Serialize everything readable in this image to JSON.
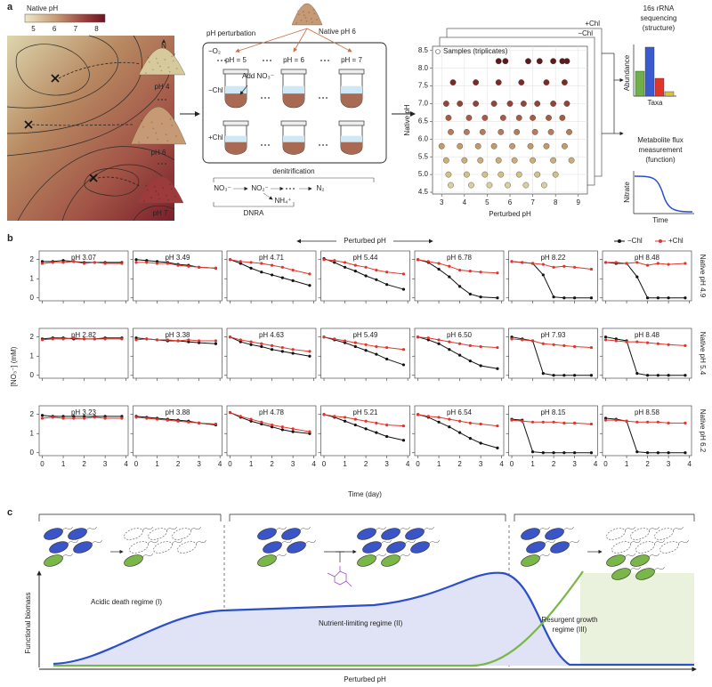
{
  "panel_labels": [
    "a",
    "b",
    "c"
  ],
  "panel_a": {
    "colorbar": {
      "label": "Native pH",
      "ticks": [
        5,
        6,
        7,
        8
      ]
    },
    "compass": "N",
    "soils": [
      "pH 4",
      "pH 6",
      "pH 7"
    ],
    "source": "Native pH 6",
    "perturbation": "pH perturbation",
    "anoxic": "−O₂",
    "levels": [
      "pH = 5",
      "pH = 6",
      "pH = 7"
    ],
    "add": "Add NO₃⁻",
    "rows": [
      "−Chl",
      "+Chl"
    ],
    "pathway": {
      "title": "denitrification",
      "species": [
        "NO₃⁻",
        "NO₂⁻",
        "N₂",
        "NH₄⁺"
      ],
      "alt": "DNRA"
    },
    "sequencing": [
      "16s rRNA",
      "sequencing",
      "(structure)"
    ],
    "abundance": "Abundance",
    "taxa": "Taxa",
    "flux": [
      "Metabolite flux",
      "measurement",
      "(function)"
    ],
    "nitrate": "Nitrate",
    "time": "Time"
  },
  "chart_data": [
    {
      "type": "scatter",
      "xlabel": "Perturbed pH",
      "ylabel": "Native pH",
      "xlim": [
        2.6,
        9.4
      ],
      "xticks": [
        3,
        4,
        5,
        6,
        7,
        8,
        9
      ],
      "ylim": [
        4.45,
        8.62
      ],
      "yticks": [
        4.5,
        {
          "value": 5,
          "label": "5.0"
        },
        5.5,
        {
          "value": 6,
          "label": "6.0"
        },
        6.5,
        {
          "value": 7,
          "label": "7.0"
        },
        7.5,
        {
          "value": 8,
          "label": "8.0"
        },
        8.5
      ],
      "grid": true,
      "legend": "Samples (triplicates)",
      "layers": [
        "+Chl",
        "−Chl"
      ],
      "series": [
        {
          "color": "#5a1a1e",
          "x": [
            5.5,
            5.8,
            6.8,
            7.3,
            7.9,
            8.3,
            8.5
          ],
          "values": [
            8.2,
            8.2,
            8.2,
            8.2,
            8.2,
            8.2,
            8.2
          ]
        },
        {
          "color": "#7a2a2a",
          "x": [
            3.5,
            4.5,
            5.5,
            6.5,
            7.6,
            8.4
          ],
          "values": [
            7.6,
            7.6,
            7.6,
            7.6,
            7.6,
            7.6
          ]
        },
        {
          "color": "#93443a",
          "x": [
            3.2,
            3.8,
            4.5,
            5.3,
            6.0,
            6.6,
            7.2,
            7.9,
            8.5
          ],
          "values": [
            7.0,
            7.0,
            7.0,
            7.0,
            7.0,
            7.0,
            7.0,
            7.0,
            7.0
          ]
        },
        {
          "color": "#a65a48",
          "x": [
            3.3,
            4.2,
            4.9,
            5.7,
            6.4,
            7.0,
            7.7,
            8.3
          ],
          "values": [
            6.6,
            6.6,
            6.6,
            6.6,
            6.6,
            6.6,
            6.6,
            6.6
          ]
        },
        {
          "color": "#b87a5c",
          "x": [
            3.4,
            4.1,
            4.8,
            5.6,
            6.3,
            7.1,
            7.8,
            8.6
          ],
          "values": [
            6.2,
            6.2,
            6.2,
            6.2,
            6.2,
            6.2,
            6.2,
            6.2
          ]
        },
        {
          "color": "#c29a6c",
          "x": [
            3.0,
            3.8,
            4.6,
            5.3,
            6.1,
            6.9,
            7.6,
            8.4
          ],
          "values": [
            5.8,
            5.8,
            5.8,
            5.8,
            5.8,
            5.8,
            5.8,
            5.8
          ]
        },
        {
          "color": "#c9b07a",
          "x": [
            3.2,
            4.0,
            4.7,
            5.5,
            6.2,
            7.0,
            7.9,
            8.7
          ],
          "values": [
            5.4,
            5.4,
            5.4,
            5.4,
            5.4,
            5.4,
            5.4,
            5.4
          ]
        },
        {
          "color": "#cfc28a",
          "x": [
            3.3,
            4.1,
            4.9,
            5.6,
            6.4,
            7.2,
            8.0
          ],
          "values": [
            5.0,
            5.0,
            5.0,
            5.0,
            5.0,
            5.0,
            5.0
          ]
        },
        {
          "color": "#d8d0a0",
          "x": [
            3.4,
            4.3,
            5.1,
            5.9,
            6.7,
            7.5
          ],
          "values": [
            4.7,
            4.7,
            4.7,
            4.7,
            4.7,
            4.7
          ]
        }
      ]
    },
    {
      "type": "line",
      "header": "Perturbed pH",
      "xlabel": "Time (day)",
      "ylabel": "[NO₃⁻] (mM)",
      "x": [
        0,
        0.5,
        1,
        1.5,
        2,
        2.5,
        3,
        3.8
      ],
      "xlim": [
        -0.15,
        4.1
      ],
      "xticks": [
        0,
        1,
        2,
        3,
        4
      ],
      "ylim": [
        -0.15,
        2.45
      ],
      "yticks": [
        0,
        1,
        2
      ],
      "legend": [
        {
          "name": "−Chl",
          "color": "#111111"
        },
        {
          "name": "+Chl",
          "color": "#e0352b"
        }
      ],
      "row_labels": [
        "Native pH 4.9",
        "Native pH 5.4",
        "Native pH 6.2"
      ],
      "panels": [
        {
          "title": "pH 3.07",
          "series": [
            {
              "values": [
                1.9,
                1.9,
                1.95,
                1.9,
                1.85,
                1.85,
                1.85,
                1.85
              ]
            },
            {
              "values": [
                1.8,
                1.85,
                1.85,
                1.9,
                1.8,
                1.85,
                1.8,
                1.8
              ]
            }
          ]
        },
        {
          "title": "pH 3.49",
          "series": [
            {
              "values": [
                2,
                1.95,
                1.9,
                1.85,
                1.75,
                1.7,
                1.6,
                1.55
              ]
            },
            {
              "values": [
                1.85,
                1.85,
                1.8,
                1.8,
                1.7,
                1.65,
                1.6,
                1.55
              ]
            }
          ]
        },
        {
          "title": "pH 4.71",
          "series": [
            {
              "values": [
                2,
                1.8,
                1.55,
                1.35,
                1.2,
                1.05,
                0.9,
                0.65
              ]
            },
            {
              "values": [
                2,
                1.9,
                1.85,
                1.8,
                1.7,
                1.6,
                1.45,
                1.25
              ]
            }
          ]
        },
        {
          "title": "pH 5.44",
          "series": [
            {
              "values": [
                2.05,
                1.85,
                1.6,
                1.4,
                1.15,
                0.95,
                0.7,
                0.45
              ]
            },
            {
              "values": [
                2,
                1.95,
                1.85,
                1.7,
                1.6,
                1.45,
                1.35,
                1.25
              ]
            }
          ]
        },
        {
          "title": "pH 6.78",
          "series": [
            {
              "values": [
                2,
                1.85,
                1.5,
                1.1,
                0.6,
                0.2,
                0.05,
                0
              ]
            },
            {
              "values": [
                2,
                1.9,
                1.8,
                1.65,
                1.45,
                1.4,
                1.35,
                1.3
              ]
            }
          ]
        },
        {
          "title": "pH 8.22",
          "series": [
            {
              "values": [
                1.9,
                1.85,
                1.8,
                1.2,
                0.05,
                0,
                0,
                0
              ]
            },
            {
              "values": [
                1.9,
                1.85,
                1.8,
                1.75,
                1.6,
                1.65,
                1.6,
                1.5
              ]
            }
          ]
        },
        {
          "title": "pH 8.48",
          "series": [
            {
              "values": [
                1.85,
                1.8,
                1.8,
                1.1,
                0,
                0,
                0,
                0
              ]
            },
            {
              "values": [
                1.85,
                1.85,
                1.8,
                1.85,
                1.7,
                1.8,
                1.75,
                1.8
              ]
            }
          ]
        },
        {
          "title": "pH 2.82",
          "series": [
            {
              "values": [
                1.9,
                1.95,
                1.95,
                1.9,
                1.9,
                1.9,
                1.95,
                1.95
              ]
            },
            {
              "values": [
                1.85,
                1.9,
                1.9,
                1.95,
                1.9,
                1.9,
                1.9,
                1.9
              ]
            }
          ]
        },
        {
          "title": "pH 3.38",
          "series": [
            {
              "values": [
                1.95,
                1.9,
                1.85,
                1.8,
                1.8,
                1.75,
                1.7,
                1.65
              ]
            },
            {
              "values": [
                1.85,
                1.9,
                1.85,
                1.85,
                1.8,
                1.85,
                1.8,
                1.8
              ]
            }
          ]
        },
        {
          "title": "pH 4.63",
          "series": [
            {
              "values": [
                2,
                1.75,
                1.6,
                1.5,
                1.35,
                1.25,
                1.15,
                1.0
              ]
            },
            {
              "values": [
                2,
                1.85,
                1.75,
                1.65,
                1.55,
                1.45,
                1.35,
                1.25
              ]
            }
          ]
        },
        {
          "title": "pH 5.49",
          "series": [
            {
              "values": [
                2,
                1.85,
                1.7,
                1.5,
                1.3,
                1.1,
                0.85,
                0.55
              ]
            },
            {
              "values": [
                2,
                1.9,
                1.8,
                1.7,
                1.6,
                1.5,
                1.45,
                1.35
              ]
            }
          ]
        },
        {
          "title": "pH 6.50",
          "series": [
            {
              "values": [
                2,
                1.85,
                1.65,
                1.35,
                1.05,
                0.75,
                0.5,
                0.35
              ]
            },
            {
              "values": [
                2,
                1.95,
                1.85,
                1.75,
                1.65,
                1.55,
                1.5,
                1.45
              ]
            }
          ]
        },
        {
          "title": "pH 7.93",
          "series": [
            {
              "values": [
                2,
                1.9,
                1.8,
                0.1,
                0,
                0,
                0,
                0
              ]
            },
            {
              "values": [
                1.9,
                1.85,
                1.8,
                1.65,
                1.6,
                1.55,
                1.5,
                1.45
              ]
            }
          ]
        },
        {
          "title": "pH 8.48",
          "series": [
            {
              "values": [
                2,
                1.9,
                1.8,
                0.1,
                0,
                0,
                0,
                0
              ]
            },
            {
              "values": [
                1.85,
                1.8,
                1.75,
                1.75,
                1.7,
                1.65,
                1.6,
                1.55
              ]
            }
          ]
        },
        {
          "title": "pH 3.23",
          "series": [
            {
              "values": [
                1.95,
                1.9,
                1.9,
                1.9,
                1.9,
                1.9,
                1.9,
                1.9
              ]
            },
            {
              "values": [
                1.8,
                1.85,
                1.8,
                1.8,
                1.8,
                1.85,
                1.8,
                1.8
              ]
            }
          ]
        },
        {
          "title": "pH 3.88",
          "series": [
            {
              "values": [
                1.9,
                1.85,
                1.8,
                1.75,
                1.7,
                1.65,
                1.55,
                1.45
              ]
            },
            {
              "values": [
                1.85,
                1.8,
                1.75,
                1.7,
                1.65,
                1.6,
                1.55,
                1.5
              ]
            }
          ]
        },
        {
          "title": "pH 4.78",
          "series": [
            {
              "values": [
                2.1,
                1.85,
                1.65,
                1.5,
                1.35,
                1.2,
                1.1,
                1.0
              ]
            },
            {
              "values": [
                2.1,
                1.9,
                1.75,
                1.6,
                1.45,
                1.35,
                1.25,
                1.1
              ]
            }
          ]
        },
        {
          "title": "pH 5.21",
          "series": [
            {
              "values": [
                2,
                1.85,
                1.65,
                1.45,
                1.25,
                1.05,
                0.85,
                0.65
              ]
            },
            {
              "values": [
                2,
                1.9,
                1.85,
                1.75,
                1.65,
                1.55,
                1.45,
                1.4
              ]
            }
          ]
        },
        {
          "title": "pH 6.54",
          "series": [
            {
              "values": [
                2,
                1.85,
                1.6,
                1.35,
                1.05,
                0.75,
                0.5,
                0.25
              ]
            },
            {
              "values": [
                2,
                1.9,
                1.85,
                1.75,
                1.65,
                1.55,
                1.5,
                1.4
              ]
            }
          ]
        },
        {
          "title": "pH 8.15",
          "series": [
            {
              "values": [
                1.75,
                1.7,
                0.05,
                0,
                0,
                0,
                0,
                0
              ]
            },
            {
              "values": [
                1.7,
                1.65,
                1.6,
                1.6,
                1.6,
                1.55,
                1.55,
                1.5
              ]
            }
          ]
        },
        {
          "title": "pH 8.58",
          "series": [
            {
              "values": [
                1.8,
                1.75,
                1.65,
                0.05,
                0,
                0,
                0,
                0
              ]
            },
            {
              "values": [
                1.7,
                1.7,
                1.65,
                1.6,
                1.6,
                1.6,
                1.55,
                1.55
              ]
            }
          ]
        }
      ]
    }
  ],
  "panel_c": {
    "regimes": [
      [
        "Acidic death regime (I)"
      ],
      [
        "Nutrient-limiting regime (II)"
      ],
      [
        "Resurgent growth",
        "regime (III)"
      ]
    ],
    "ylabel": "Functional biomass",
    "xlabel": "Perturbed pH"
  }
}
